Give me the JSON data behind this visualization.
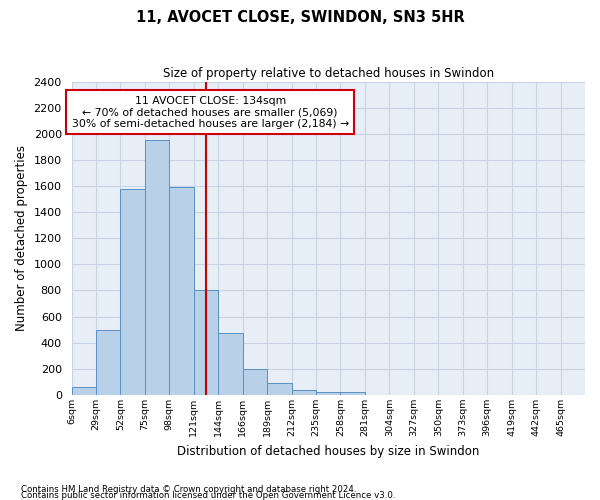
{
  "title": "11, AVOCET CLOSE, SWINDON, SN3 5HR",
  "subtitle": "Size of property relative to detached houses in Swindon",
  "xlabel": "Distribution of detached houses by size in Swindon",
  "ylabel": "Number of detached properties",
  "bar_values": [
    60,
    500,
    1580,
    1950,
    1590,
    800,
    475,
    195,
    90,
    35,
    25,
    20,
    0,
    0,
    0,
    0,
    0,
    0,
    0,
    0,
    0
  ],
  "bar_labels": [
    "6sqm",
    "29sqm",
    "52sqm",
    "75sqm",
    "98sqm",
    "121sqm",
    "144sqm",
    "166sqm",
    "189sqm",
    "212sqm",
    "235sqm",
    "258sqm",
    "281sqm",
    "304sqm",
    "327sqm",
    "350sqm",
    "373sqm",
    "396sqm",
    "419sqm",
    "442sqm",
    "465sqm"
  ],
  "bar_color": "#b8d0e8",
  "bar_edge_color": "#5a8fc0",
  "grid_color": "#c8d4e4",
  "background_color": "#e8eef6",
  "vline_color": "#cc0000",
  "vline_pos": 5.52,
  "annotation_text": "11 AVOCET CLOSE: 134sqm\n← 70% of detached houses are smaller (5,069)\n30% of semi-detached houses are larger (2,184) →",
  "annotation_box_color": "#cc0000",
  "ylim": [
    0,
    2400
  ],
  "yticks": [
    0,
    200,
    400,
    600,
    800,
    1000,
    1200,
    1400,
    1600,
    1800,
    2000,
    2200,
    2400
  ],
  "figsize": [
    6.0,
    5.0
  ],
  "dpi": 100,
  "footnote1": "Contains HM Land Registry data © Crown copyright and database right 2024.",
  "footnote2": "Contains public sector information licensed under the Open Government Licence v3.0."
}
